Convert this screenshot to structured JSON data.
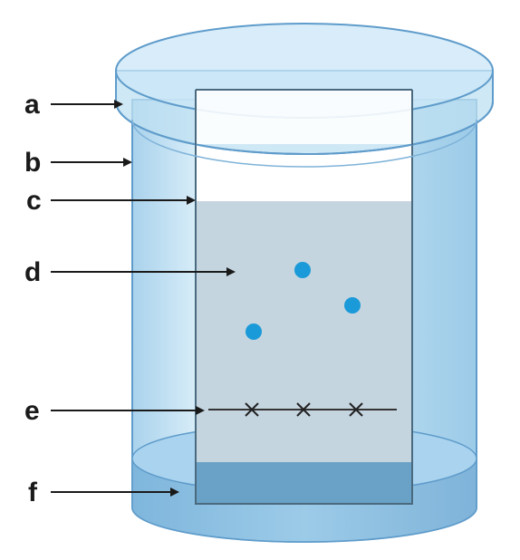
{
  "labels": {
    "a": "a",
    "b": "b",
    "c": "c",
    "d": "d",
    "e": "e",
    "f": "f"
  },
  "colors": {
    "jar_body": "#bfe0f2",
    "jar_outline": "#5f9ccb",
    "paper": "#ffffff",
    "paper_wet": "#c5d5e0",
    "solvent_in_paper": "#6aa1c6",
    "solvent_surface": "#a9d3ee",
    "spot": "#1a9ad8",
    "marker": "#222222"
  },
  "diagram": {
    "spot_count": 3,
    "origin_marks": 3
  }
}
